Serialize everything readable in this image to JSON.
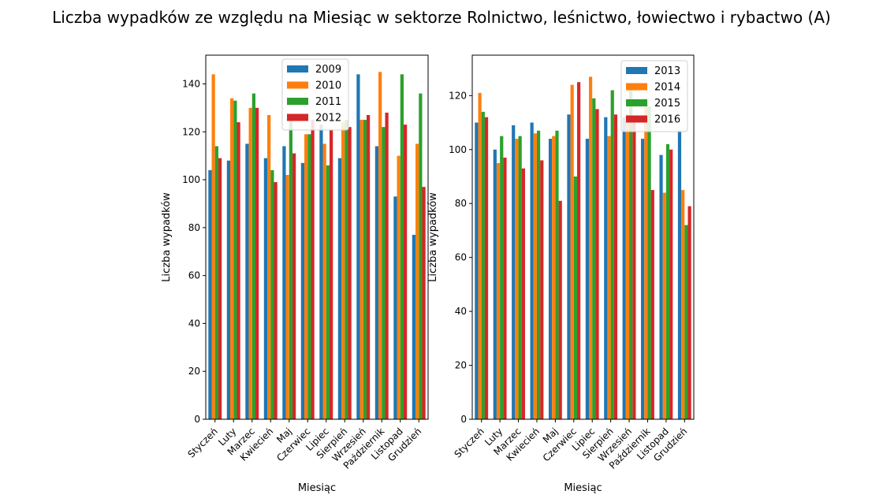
{
  "chart_data": {
    "title": "Liczba wypadków ze względu na Miesiąc w sektorze Rolnictwo, leśnictwo, łowiectwo i rybactwo (A)",
    "charts": [
      {
        "type": "bar",
        "xlabel": "Miesiąc",
        "ylabel": "Liczba wypadków",
        "ylim": [
          0,
          152
        ],
        "yticks": [
          0,
          20,
          40,
          60,
          80,
          100,
          120,
          140
        ],
        "legend_position": "top-center",
        "grid": false,
        "categories": [
          "Styczeń",
          "Luty",
          "Marzec",
          "Kwiecień",
          "Maj",
          "Czerwiec",
          "Lipiec",
          "Sierpień",
          "Wrzesień",
          "Październik",
          "Listopad",
          "Grudzień"
        ],
        "series": [
          {
            "name": "2009",
            "color": "#1f77b4",
            "values": [
              104,
              108,
              115,
              109,
              114,
              107,
              123,
              109,
              144,
              114,
              93,
              77
            ]
          },
          {
            "name": "2010",
            "color": "#ff7f0e",
            "values": [
              144,
              134,
              130,
              127,
              102,
              119,
              115,
              124,
              125,
              145,
              110,
              115
            ]
          },
          {
            "name": "2011",
            "color": "#2ca02c",
            "values": [
              114,
              133,
              136,
              104,
              125,
              119,
              106,
              125,
              125,
              122,
              144,
              136
            ]
          },
          {
            "name": "2012",
            "color": "#d62728",
            "values": [
              109,
              124,
              130,
              99,
              111,
              125,
              121,
              122,
              127,
              128,
              123,
              97
            ]
          }
        ]
      },
      {
        "type": "bar",
        "xlabel": "Miesiąc",
        "ylabel": "Liczba wypadków",
        "ylim": [
          0,
          135
        ],
        "yticks": [
          0,
          20,
          40,
          60,
          80,
          100,
          120
        ],
        "legend_position": "top-right",
        "grid": false,
        "categories": [
          "Styczeń",
          "Luty",
          "Marzec",
          "Kwiecień",
          "Maj",
          "Czerwiec",
          "Lipiec",
          "Sierpień",
          "Wrzesień",
          "Październik",
          "Listopad",
          "Grudzień"
        ],
        "series": [
          {
            "name": "2013",
            "color": "#1f77b4",
            "values": [
              110,
              100,
              109,
              110,
              104,
              113,
              104,
              112,
              112,
              104,
              98,
              107
            ]
          },
          {
            "name": "2014",
            "color": "#ff7f0e",
            "values": [
              121,
              95,
              104,
              106,
              105,
              124,
              127,
              105,
              113,
              118,
              84,
              85
            ]
          },
          {
            "name": "2015",
            "color": "#2ca02c",
            "values": [
              114,
              105,
              105,
              107,
              107,
              90,
              119,
              122,
              124,
              116,
              102,
              72
            ]
          },
          {
            "name": "2016",
            "color": "#d62728",
            "values": [
              112,
              97,
              93,
              96,
              81,
              125,
              115,
              113,
              110,
              85,
              100,
              79
            ]
          }
        ]
      }
    ]
  }
}
